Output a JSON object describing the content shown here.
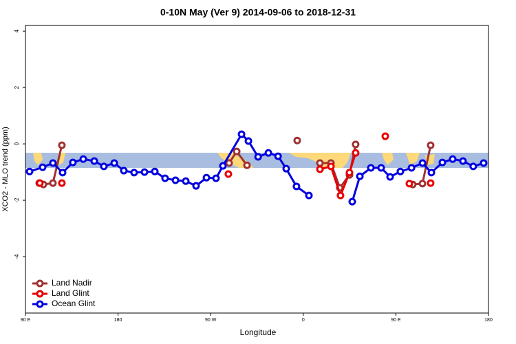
{
  "chart_data": {
    "type": "line",
    "title": "0-10N May (Ver 9)   2014-09-06 to 2018-12-31",
    "xlabel": "Longitude",
    "ylabel": "XCO2 - MLO trend (ppm)",
    "xlim": [
      90,
      540
    ],
    "ylim": [
      -6,
      4.2
    ],
    "xticks": [
      {
        "value": 90,
        "label": "90 E"
      },
      180,
      {
        "value": 270,
        "label": "90 W"
      },
      {
        "value": 360,
        "label": "0"
      },
      {
        "value": 450,
        "label": "90 E"
      },
      {
        "value": 540,
        "label": "180"
      }
    ],
    "yticks": [
      -4,
      -2,
      0,
      2,
      4
    ],
    "legend": "bottom-left",
    "series": [
      {
        "name": "Land Nadir",
        "color": "#a03232",
        "x": [
          103.4,
          107.4,
          116.7,
          125.4,
          null,
          287.9,
          295.3,
          305.3,
          null,
          354.1,
          null,
          376.2,
          386.9,
          395.5,
          404.9,
          410.9,
          null,
          466.4,
          475.8,
          483.8
        ],
        "values": [
          -1.39,
          -1.44,
          -1.39,
          -0.05,
          null,
          -0.68,
          -0.27,
          -0.76,
          null,
          0.12,
          null,
          -0.68,
          -0.68,
          -1.56,
          -1.1,
          -0.02,
          null,
          -1.44,
          -1.41,
          -0.05
        ]
      },
      {
        "name": "Land Glint",
        "color": "#e80000",
        "x": [
          104,
          null,
          125.4,
          null,
          287.2,
          null,
          376.2,
          386.9,
          396.2,
          404.9,
          410.9,
          null,
          439.7,
          null,
          463.1,
          null,
          483.8
        ],
        "values": [
          -1.39,
          null,
          -1.39,
          null,
          -1.07,
          null,
          -0.9,
          -0.8,
          -1.83,
          -1.02,
          -0.32,
          null,
          0.27,
          null,
          -1.41,
          null,
          -1.39
        ]
      },
      {
        "name": "Ocean Glint",
        "color": "#0000e0",
        "x": [
          94,
          106.7,
          116.7,
          126.1,
          136.1,
          146.2,
          156.9,
          166.2,
          176.3,
          185.6,
          195.6,
          205.7,
          215.7,
          225.7,
          235.8,
          245.8,
          255.8,
          265.9,
          275.2,
          281.9,
          300,
          306.7,
          316.1,
          326.1,
          335.5,
          343.4,
          353.4,
          365.5,
          null,
          407.6,
          415,
          425.7,
          435.7,
          444.4,
          454.4,
          465.2,
          475.9,
          484.5,
          495.2,
          505.2,
          515.2,
          525.2,
          535.3
        ],
        "values": [
          -0.98,
          -0.83,
          -0.68,
          -1.02,
          -0.66,
          -0.54,
          -0.61,
          -0.8,
          -0.68,
          -0.95,
          -1.02,
          -1.0,
          -0.98,
          -1.22,
          -1.29,
          -1.32,
          -1.49,
          -1.2,
          -1.22,
          -0.78,
          0.34,
          0.1,
          -0.46,
          -0.32,
          -0.44,
          -0.88,
          -1.51,
          -1.83,
          null,
          -2.05,
          -1.15,
          -0.85,
          -0.85,
          -1.17,
          -0.98,
          -0.85,
          -0.68,
          -1.02,
          -0.66,
          -0.54,
          -0.61,
          -0.8,
          -0.68
        ]
      }
    ]
  }
}
